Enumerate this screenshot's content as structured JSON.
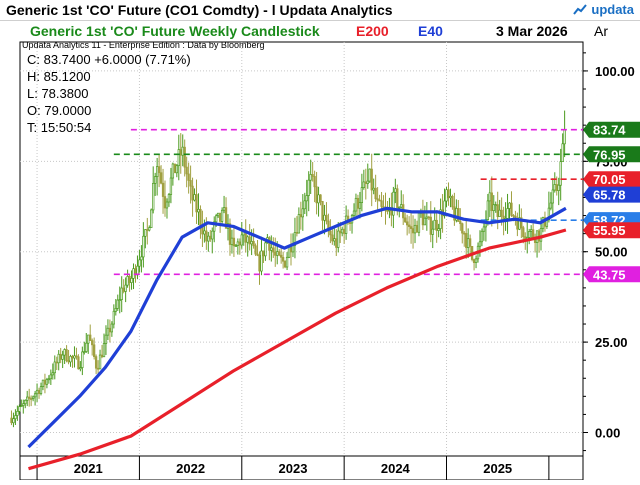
{
  "window": {
    "title": "Generic 1st 'CO' Future (CO1 Comdty) - l  Updata Analytics",
    "brand": "updata"
  },
  "header": {
    "chart_title": "Generic 1st 'CO' Future Weekly Candlestick",
    "e200_label": "E200",
    "e40_label": "E40",
    "date": "3 Mar 2026",
    "axis_type": "Ar",
    "edition": "Updata Analytics 11 - Enterprise Edition : Data by Bloomberg"
  },
  "ohlc": {
    "close": "C: 83.7400  +6.0000 (7.71%)",
    "high": "H: 85.1200",
    "low": "L: 78.3800",
    "open": "O: 79.0000",
    "time": "T: 15:50:54"
  },
  "colors": {
    "title_green": "#1a8a1a",
    "e200_red": "#e8202a",
    "e40_blue": "#1f3fd6",
    "candle_up": "#4a9a1e",
    "candle_down": "#a0a040",
    "magenta": "#e020e0",
    "green_line": "#1a8a1a",
    "red_line": "#e8202a",
    "blue_line": "#2a7ee8"
  },
  "chart_data": {
    "type": "candlestick",
    "title": "Generic 1st 'CO' Future Weekly Candlestick",
    "ylim": [
      -6.5,
      108
    ],
    "y_ticks": [
      "100.00",
      "75.00",
      "50.00",
      "25.00",
      "0.00"
    ],
    "x_ticks": [
      "2021",
      "2022",
      "2023",
      "2024",
      "2025"
    ],
    "price_path": [
      [
        "2020-10",
        4
      ],
      [
        "2020-12",
        9
      ],
      [
        "2021-02",
        14
      ],
      [
        "2021-04",
        22
      ],
      [
        "2021-06",
        19
      ],
      [
        "2021-07",
        27
      ],
      [
        "2021-08",
        18
      ],
      [
        "2021-10",
        32
      ],
      [
        "2021-11",
        40
      ],
      [
        "2021-12",
        42
      ],
      [
        "2022-02",
        56
      ],
      [
        "2022-03",
        76
      ],
      [
        "2022-04",
        64
      ],
      [
        "2022-05",
        72
      ],
      [
        "2022-06",
        78
      ],
      [
        "2022-07",
        66
      ],
      [
        "2022-08",
        60
      ],
      [
        "2022-09",
        52
      ],
      [
        "2022-10",
        58
      ],
      [
        "2022-11",
        60
      ],
      [
        "2022-12",
        50
      ],
      [
        "2023-01",
        54
      ],
      [
        "2023-02",
        52
      ],
      [
        "2023-03",
        46
      ],
      [
        "2023-04",
        54
      ],
      [
        "2023-05",
        48
      ],
      [
        "2023-06",
        47
      ],
      [
        "2023-07",
        54
      ],
      [
        "2023-08",
        62
      ],
      [
        "2023-09",
        70
      ],
      [
        "2023-10",
        64
      ],
      [
        "2023-11",
        56
      ],
      [
        "2023-12",
        52
      ],
      [
        "2024-01",
        57
      ],
      [
        "2024-02",
        61
      ],
      [
        "2024-03",
        66
      ],
      [
        "2024-04",
        70
      ],
      [
        "2024-05",
        62
      ],
      [
        "2024-06",
        60
      ],
      [
        "2024-07",
        65
      ],
      [
        "2024-08",
        60
      ],
      [
        "2024-09",
        55
      ],
      [
        "2024-10",
        60
      ],
      [
        "2024-11",
        57
      ],
      [
        "2024-12",
        58
      ],
      [
        "2025-01",
        65
      ],
      [
        "2025-02",
        60
      ],
      [
        "2025-03",
        56
      ],
      [
        "2025-04",
        48
      ],
      [
        "2025-05",
        52
      ],
      [
        "2025-06",
        64
      ],
      [
        "2025-07",
        60
      ],
      [
        "2025-08",
        62
      ],
      [
        "2025-09",
        60
      ],
      [
        "2025-10",
        56
      ],
      [
        "2025-11",
        55
      ],
      [
        "2025-12",
        55
      ],
      [
        "2026-01",
        62
      ],
      [
        "2026-02",
        68
      ],
      [
        "2026-03",
        83.74
      ]
    ],
    "ema40_path": [
      [
        "2020-12",
        -4
      ],
      [
        "2021-03",
        3
      ],
      [
        "2021-06",
        10
      ],
      [
        "2021-09",
        18
      ],
      [
        "2021-12",
        28
      ],
      [
        "2022-03",
        42
      ],
      [
        "2022-06",
        54
      ],
      [
        "2022-09",
        58
      ],
      [
        "2022-12",
        57
      ],
      [
        "2023-03",
        54
      ],
      [
        "2023-06",
        51
      ],
      [
        "2023-09",
        54
      ],
      [
        "2023-12",
        57
      ],
      [
        "2024-03",
        60
      ],
      [
        "2024-06",
        62
      ],
      [
        "2024-09",
        61
      ],
      [
        "2024-12",
        61
      ],
      [
        "2025-03",
        59
      ],
      [
        "2025-06",
        58
      ],
      [
        "2025-09",
        59
      ],
      [
        "2025-12",
        58
      ],
      [
        "2026-03",
        62
      ]
    ],
    "ema200_path": [
      [
        "2020-12",
        -10
      ],
      [
        "2021-06",
        -6
      ],
      [
        "2021-12",
        -1
      ],
      [
        "2022-06",
        8
      ],
      [
        "2022-12",
        17
      ],
      [
        "2023-06",
        25
      ],
      [
        "2023-12",
        33
      ],
      [
        "2024-06",
        40
      ],
      [
        "2024-12",
        46
      ],
      [
        "2025-06",
        51
      ],
      [
        "2025-12",
        54
      ],
      [
        "2026-03",
        56
      ]
    ],
    "hlines": [
      {
        "value": 83.74,
        "style": "dashed",
        "color": "magenta",
        "start": "2021-12"
      },
      {
        "value": 76.95,
        "style": "dashed",
        "color": "green",
        "start": "2021-10"
      },
      {
        "value": 70.05,
        "style": "dashed",
        "color": "red",
        "start": "2025-05"
      },
      {
        "value": 58.72,
        "style": "dashed",
        "color": "blue",
        "start": "2025-05"
      },
      {
        "value": 43.75,
        "style": "dashed",
        "color": "magenta",
        "start": "2021-10"
      }
    ],
    "tags": [
      {
        "label": "83.74",
        "value": 83.74,
        "color": "green_dark"
      },
      {
        "label": "76.95",
        "value": 76.95,
        "color": "green_dark"
      },
      {
        "label": "70.05",
        "value": 70.05,
        "color": "red"
      },
      {
        "label": "65.78",
        "value": 65.78,
        "color": "blue"
      },
      {
        "label": "58.72",
        "value": 58.72,
        "color": "blue_light"
      },
      {
        "label": "55.95",
        "value": 55.95,
        "color": "red"
      },
      {
        "label": "43.75",
        "value": 43.75,
        "color": "magenta"
      }
    ]
  }
}
